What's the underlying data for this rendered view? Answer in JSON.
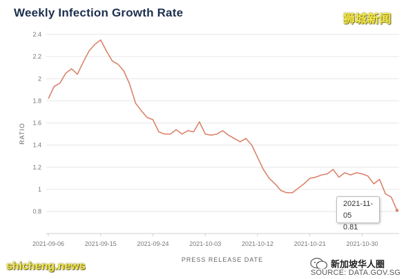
{
  "chart_data": {
    "type": "line",
    "title": "Weekly Infection Growth Rate",
    "xlabel": "PRESS RELEASE DATE",
    "ylabel": "RATIO",
    "ylim": [
      0.7,
      2.4
    ],
    "yticks": [
      0.8,
      1,
      1.2,
      1.4,
      1.6,
      1.8,
      2,
      2.2,
      2.4
    ],
    "ytick_labels": [
      "0.8",
      "1",
      "1.2",
      "1.4",
      "1.6",
      "1.8",
      "2",
      "2.2",
      "2.4"
    ],
    "xtick_labels": [
      "2021-09-06",
      "2021-09-15",
      "2021-09-24",
      "2021-10-03",
      "2021-10-12",
      "2021-10-21",
      "2021-10-30"
    ],
    "grid": "horizontal",
    "line_color": "#d9826a",
    "series": [
      {
        "x": [
          "2021-09-06",
          "2021-09-07",
          "2021-09-08",
          "2021-09-09",
          "2021-09-10",
          "2021-09-11",
          "2021-09-12",
          "2021-09-13",
          "2021-09-14",
          "2021-09-15",
          "2021-09-16",
          "2021-09-17",
          "2021-09-18",
          "2021-09-19",
          "2021-09-20",
          "2021-09-21",
          "2021-09-22",
          "2021-09-23",
          "2021-09-24",
          "2021-09-25",
          "2021-09-26",
          "2021-09-27",
          "2021-09-28",
          "2021-09-29",
          "2021-09-30",
          "2021-10-01",
          "2021-10-02",
          "2021-10-03",
          "2021-10-04",
          "2021-10-05",
          "2021-10-06",
          "2021-10-07",
          "2021-10-08",
          "2021-10-09",
          "2021-10-10",
          "2021-10-11",
          "2021-10-12",
          "2021-10-13",
          "2021-10-14",
          "2021-10-15",
          "2021-10-16",
          "2021-10-17",
          "2021-10-18",
          "2021-10-19",
          "2021-10-20",
          "2021-10-21",
          "2021-10-22",
          "2021-10-23",
          "2021-10-24",
          "2021-10-25",
          "2021-10-26",
          "2021-10-27",
          "2021-10-28",
          "2021-10-29",
          "2021-10-30",
          "2021-10-31",
          "2021-11-01",
          "2021-11-02",
          "2021-11-03",
          "2021-11-04",
          "2021-11-05"
        ],
        "values": [
          1.82,
          1.93,
          1.96,
          2.05,
          2.09,
          2.04,
          2.15,
          2.25,
          2.31,
          2.35,
          2.25,
          2.16,
          2.13,
          2.07,
          1.95,
          1.78,
          1.71,
          1.65,
          1.63,
          1.52,
          1.5,
          1.5,
          1.54,
          1.5,
          1.53,
          1.52,
          1.61,
          1.5,
          1.49,
          1.5,
          1.53,
          1.49,
          1.46,
          1.43,
          1.46,
          1.4,
          1.29,
          1.18,
          1.1,
          1.05,
          0.99,
          0.97,
          0.97,
          1.01,
          1.05,
          1.1,
          1.11,
          1.13,
          1.14,
          1.18,
          1.11,
          1.15,
          1.13,
          1.15,
          1.14,
          1.12,
          1.05,
          1.09,
          0.96,
          0.93,
          0.81
        ]
      }
    ],
    "tooltip": {
      "date": "2021-11-05",
      "value": "0.81"
    }
  },
  "header": {
    "logo_text": "狮城新闻"
  },
  "watermarks": {
    "left": "shicheng.news",
    "right": "新加坡华人圈",
    "source": "SOURCE: DATA.GOV.SG"
  }
}
